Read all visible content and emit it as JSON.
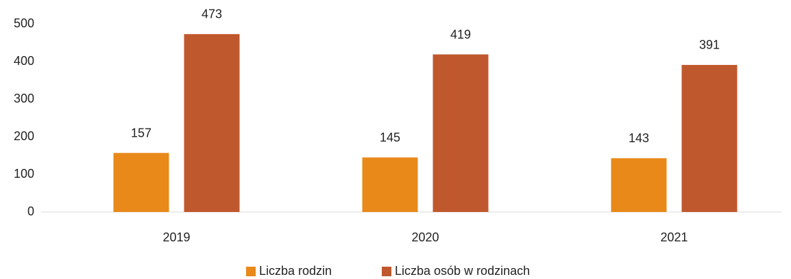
{
  "chart_data": {
    "type": "bar",
    "categories": [
      "2019",
      "2020",
      "2021"
    ],
    "series": [
      {
        "name": "Liczba rodzin",
        "color": "#e8891a",
        "values": [
          157,
          145,
          143
        ]
      },
      {
        "name": "Liczba osób w rodzinach",
        "color": "#c0582e",
        "values": [
          473,
          419,
          391
        ]
      }
    ],
    "ylim": [
      0,
      500
    ],
    "yticks": [
      0,
      100,
      200,
      300,
      400,
      500
    ],
    "grid": false,
    "legend": "bottom"
  }
}
